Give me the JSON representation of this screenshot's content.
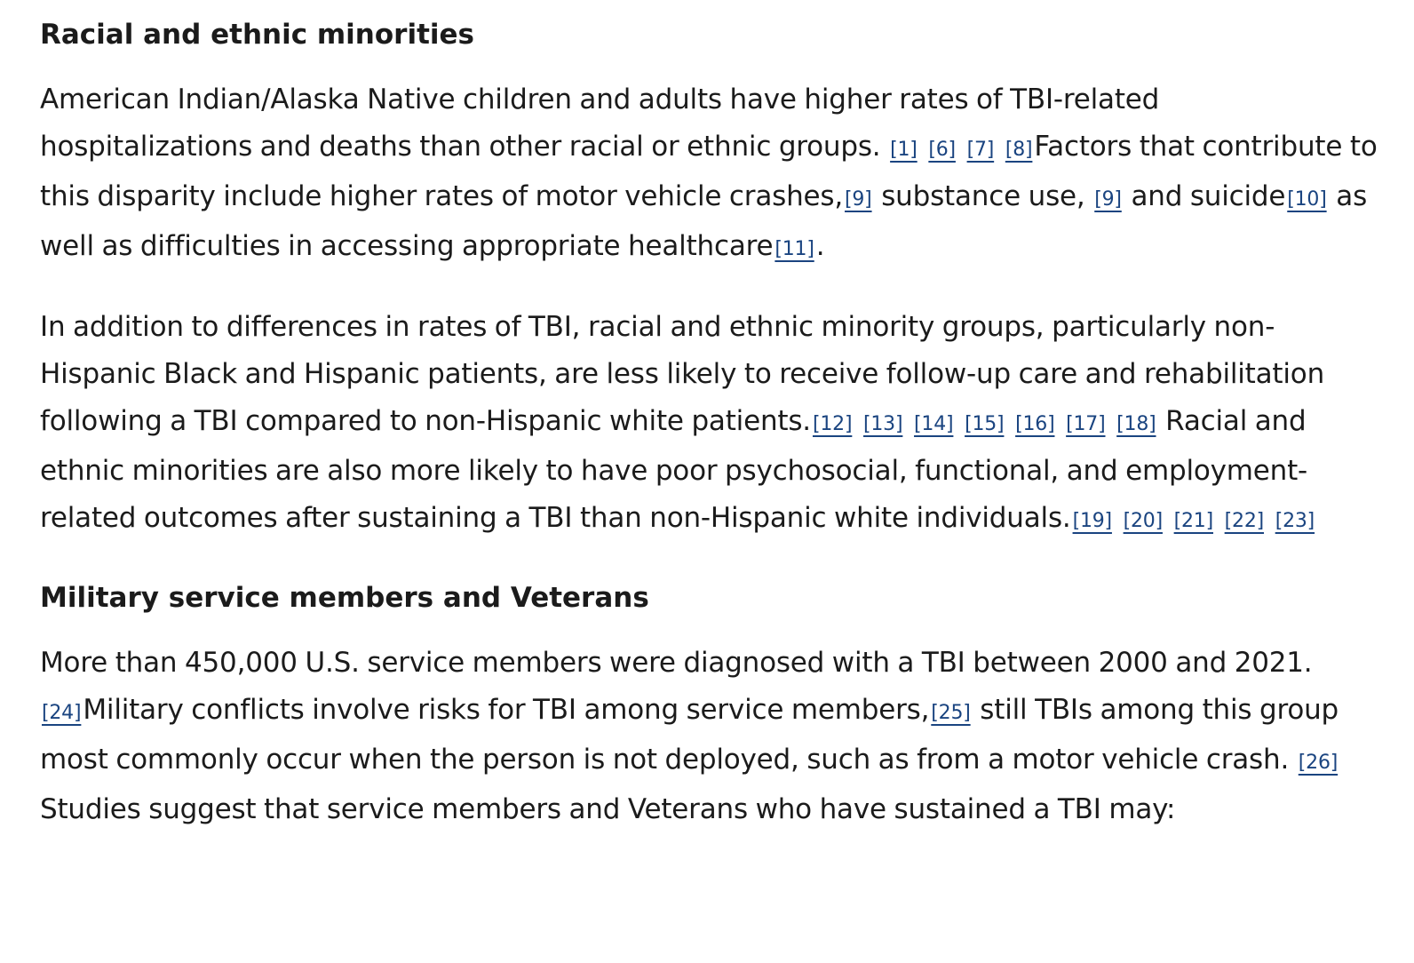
{
  "section1": {
    "heading": "Racial and ethnic minorities",
    "p1": {
      "t1": "American Indian/Alaska Native children and adults have higher rates of TBI-related hospitalizations and deaths than other racial or ethnic groups. ",
      "r1": "[1]",
      "r2": "[6]",
      "r3": "[7]",
      "r4": "[8]",
      "t2": "Factors that contribute to this disparity include higher rates of motor vehicle crashes,",
      "r5": "[9]",
      "t3": " substance use, ",
      "r6": "[9]",
      "t4": " and suicide",
      "r7": "[10]",
      "t5": " as well as difficulties in accessing appropriate healthcare",
      "r8": "[11]",
      "t6": "."
    },
    "p2": {
      "t1": "In addition to differences in rates of TBI, racial and ethnic minority groups, particularly non-Hispanic Black and Hispanic patients, are less likely to receive follow-up care and rehabilitation following a TBI compared to non-Hispanic white patients.",
      "refs_a": [
        "[12]",
        "[13]",
        "[14]",
        "[15]",
        "[16]",
        "[17]",
        "[18]"
      ],
      "t2": " Racial and ethnic minorities are also more likely to have poor psychosocial, functional, and employment-related outcomes after sustaining a TBI than non-Hispanic white individuals.",
      "refs_b": [
        "[19]",
        "[20]",
        "[21]",
        "[22]",
        "[23]"
      ]
    }
  },
  "section2": {
    "heading": "Military service members and Veterans",
    "p1": {
      "t1": "More than 450,000 U.S. service members were diagnosed with a TBI between 2000 and 2021.",
      "r1": "[24]",
      "t2": "Military conflicts involve risks for TBI among service members,",
      "r2": "[25]",
      "t3": " still TBIs among this group most commonly occur when the person is not deployed, such as from a motor vehicle crash. ",
      "r3": "[26]",
      "t4": " Studies suggest that service members and Veterans who have sustained a TBI may:"
    }
  }
}
